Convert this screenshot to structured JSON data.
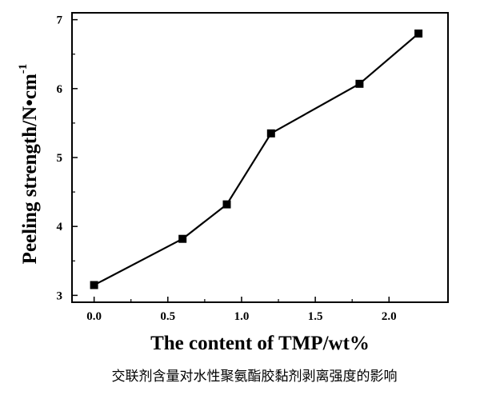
{
  "chart_data": {
    "type": "line",
    "x": [
      0.0,
      0.6,
      0.9,
      1.2,
      1.8,
      2.2
    ],
    "series": [
      {
        "values": [
          3.15,
          3.82,
          4.32,
          5.35,
          6.07,
          6.8
        ]
      }
    ],
    "marker": "square",
    "xlabel": "The content of TMP/wt%",
    "ylabel": "Peeling strength/N•cm",
    "ylabel_superscript": "-1",
    "xlim": [
      -0.15,
      2.4
    ],
    "ylim": [
      2.9,
      7.1
    ],
    "xticks": [
      0.0,
      0.5,
      1.0,
      1.5,
      2.0
    ],
    "xtick_labels": [
      "0.0",
      "0.5",
      "1.0",
      "1.5",
      "2.0"
    ],
    "yticks": [
      3,
      4,
      5,
      6,
      7
    ],
    "ytick_labels": [
      "3",
      "4",
      "5",
      "6",
      "7"
    ],
    "grid": false,
    "caption": "交联剂含量对水性聚氨酯胶黏剂剥离强度的影响",
    "line_color": "#000000",
    "marker_color": "#000000"
  }
}
